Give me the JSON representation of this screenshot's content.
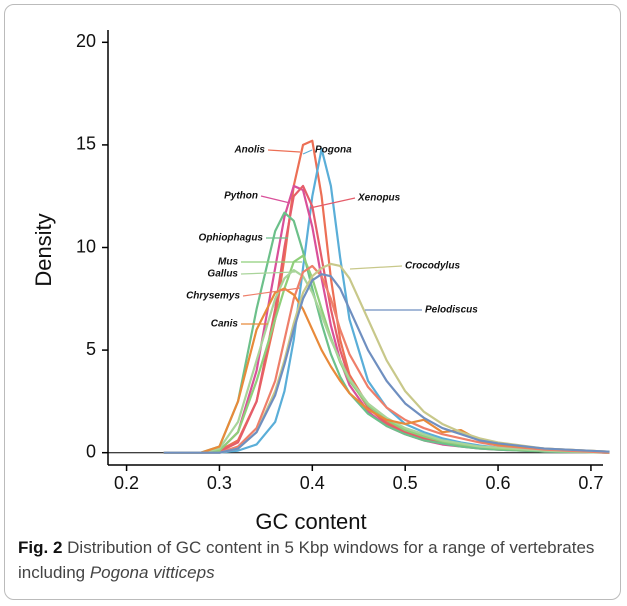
{
  "chart_data": {
    "type": "line",
    "xlabel": "GC content",
    "ylabel": "Density",
    "xlim": [
      0.18,
      0.713
    ],
    "ylim": [
      -0.6,
      20.6
    ],
    "xticks": [
      0.2,
      0.3,
      0.4,
      0.5,
      0.6,
      0.7
    ],
    "yticks": [
      0,
      5,
      10,
      15,
      20
    ],
    "zero_line": true,
    "x": [
      0.24,
      0.28,
      0.3,
      0.32,
      0.34,
      0.36,
      0.37,
      0.38,
      0.39,
      0.4,
      0.41,
      0.42,
      0.43,
      0.44,
      0.46,
      0.48,
      0.5,
      0.52,
      0.54,
      0.56,
      0.58,
      0.6,
      0.65,
      0.72
    ],
    "series": [
      {
        "name": "Anolis",
        "color": "#ec6f55",
        "values": [
          0,
          0,
          0.1,
          0.6,
          2.5,
          6.5,
          9.5,
          13,
          15,
          15.2,
          12.5,
          8.5,
          5.5,
          3.8,
          2.3,
          1.5,
          1.0,
          0.7,
          0.5,
          0.35,
          0.25,
          0.2,
          0.1,
          0
        ]
      },
      {
        "name": "Pogona",
        "color": "#5aaed8",
        "values": [
          0,
          0,
          0,
          0.1,
          0.4,
          1.5,
          3,
          5.5,
          9,
          12.5,
          14.8,
          13,
          9.5,
          6.5,
          3.5,
          2.2,
          1.4,
          1.0,
          0.7,
          0.5,
          0.35,
          0.25,
          0.1,
          0
        ]
      },
      {
        "name": "Python",
        "color": "#d9509a",
        "values": [
          0,
          0,
          0.1,
          1,
          4,
          9,
          11.5,
          13,
          12.8,
          11,
          8.5,
          6.2,
          4.5,
          3.3,
          2.0,
          1.3,
          0.9,
          0.6,
          0.4,
          0.3,
          0.2,
          0.15,
          0.05,
          0
        ]
      },
      {
        "name": "Xenopus",
        "color": "#e55d6a",
        "values": [
          0,
          0,
          0.05,
          0.5,
          2.5,
          7,
          10,
          12.5,
          13,
          12,
          9.5,
          7,
          5,
          3.6,
          2.2,
          1.4,
          1.0,
          0.7,
          0.5,
          0.35,
          0.25,
          0.2,
          0.1,
          0
        ]
      },
      {
        "name": "Ophiophagus",
        "color": "#6cc08a",
        "values": [
          0,
          0,
          0.3,
          2.5,
          7,
          10.8,
          11.7,
          11.3,
          9.8,
          8,
          6.3,
          4.8,
          3.7,
          2.9,
          1.9,
          1.3,
          0.9,
          0.6,
          0.45,
          0.3,
          0.2,
          0.15,
          0.05,
          0
        ]
      },
      {
        "name": "Mus",
        "color": "#8fcf7a",
        "values": [
          0,
          0,
          0.1,
          1,
          3.5,
          6.5,
          8,
          9.3,
          9.6,
          8.5,
          7,
          5.6,
          4.4,
          3.5,
          2.3,
          1.6,
          1.1,
          0.8,
          0.55,
          0.4,
          0.3,
          0.2,
          0.1,
          0
        ]
      },
      {
        "name": "Gallus",
        "color": "#a9d49a",
        "values": [
          0,
          0,
          0.2,
          1.5,
          4.5,
          7.5,
          8.5,
          8.9,
          8.6,
          7.8,
          6.7,
          5.5,
          4.5,
          3.6,
          2.4,
          1.7,
          1.2,
          0.9,
          0.6,
          0.45,
          0.3,
          0.25,
          0.1,
          0
        ]
      },
      {
        "name": "Chrysemys",
        "color": "#ee7f6a",
        "values": [
          0,
          0,
          0,
          0.3,
          1.2,
          3.5,
          5.5,
          7.5,
          8.8,
          9.1,
          8.6,
          7.5,
          6,
          4.8,
          3.2,
          2.2,
          1.6,
          1.2,
          0.9,
          0.7,
          0.5,
          0.35,
          0.15,
          0
        ]
      },
      {
        "name": "Canis",
        "color": "#e88a3a",
        "values": [
          0,
          0,
          0.3,
          2.5,
          6,
          7.8,
          8,
          7.7,
          7,
          6,
          5,
          4.2,
          3.5,
          2.9,
          2.1,
          1.6,
          1.4,
          1.6,
          1.0,
          1.1,
          0.6,
          0.4,
          0.2,
          0.05
        ]
      },
      {
        "name": "Crocodylus",
        "color": "#c8c88a",
        "values": [
          0,
          0,
          0,
          0.2,
          1,
          3,
          4.5,
          6.3,
          7.8,
          8.6,
          9.0,
          9.2,
          9.1,
          8.5,
          6.5,
          4.5,
          3.0,
          2.0,
          1.4,
          1.0,
          0.7,
          0.5,
          0.2,
          0.05
        ]
      },
      {
        "name": "Pelodiscus",
        "color": "#6f8fc0",
        "values": [
          0,
          0,
          0,
          0.2,
          1,
          2.8,
          4.3,
          6,
          7.5,
          8.4,
          8.7,
          8.6,
          8,
          7,
          5,
          3.5,
          2.4,
          1.7,
          1.2,
          0.9,
          0.6,
          0.45,
          0.2,
          0.05
        ]
      }
    ]
  },
  "caption": {
    "label": "Fig. 2",
    "text": "Distribution of GC content in 5 Kbp windows for a range of vertebrates including",
    "species": "Pogona vitticeps"
  }
}
